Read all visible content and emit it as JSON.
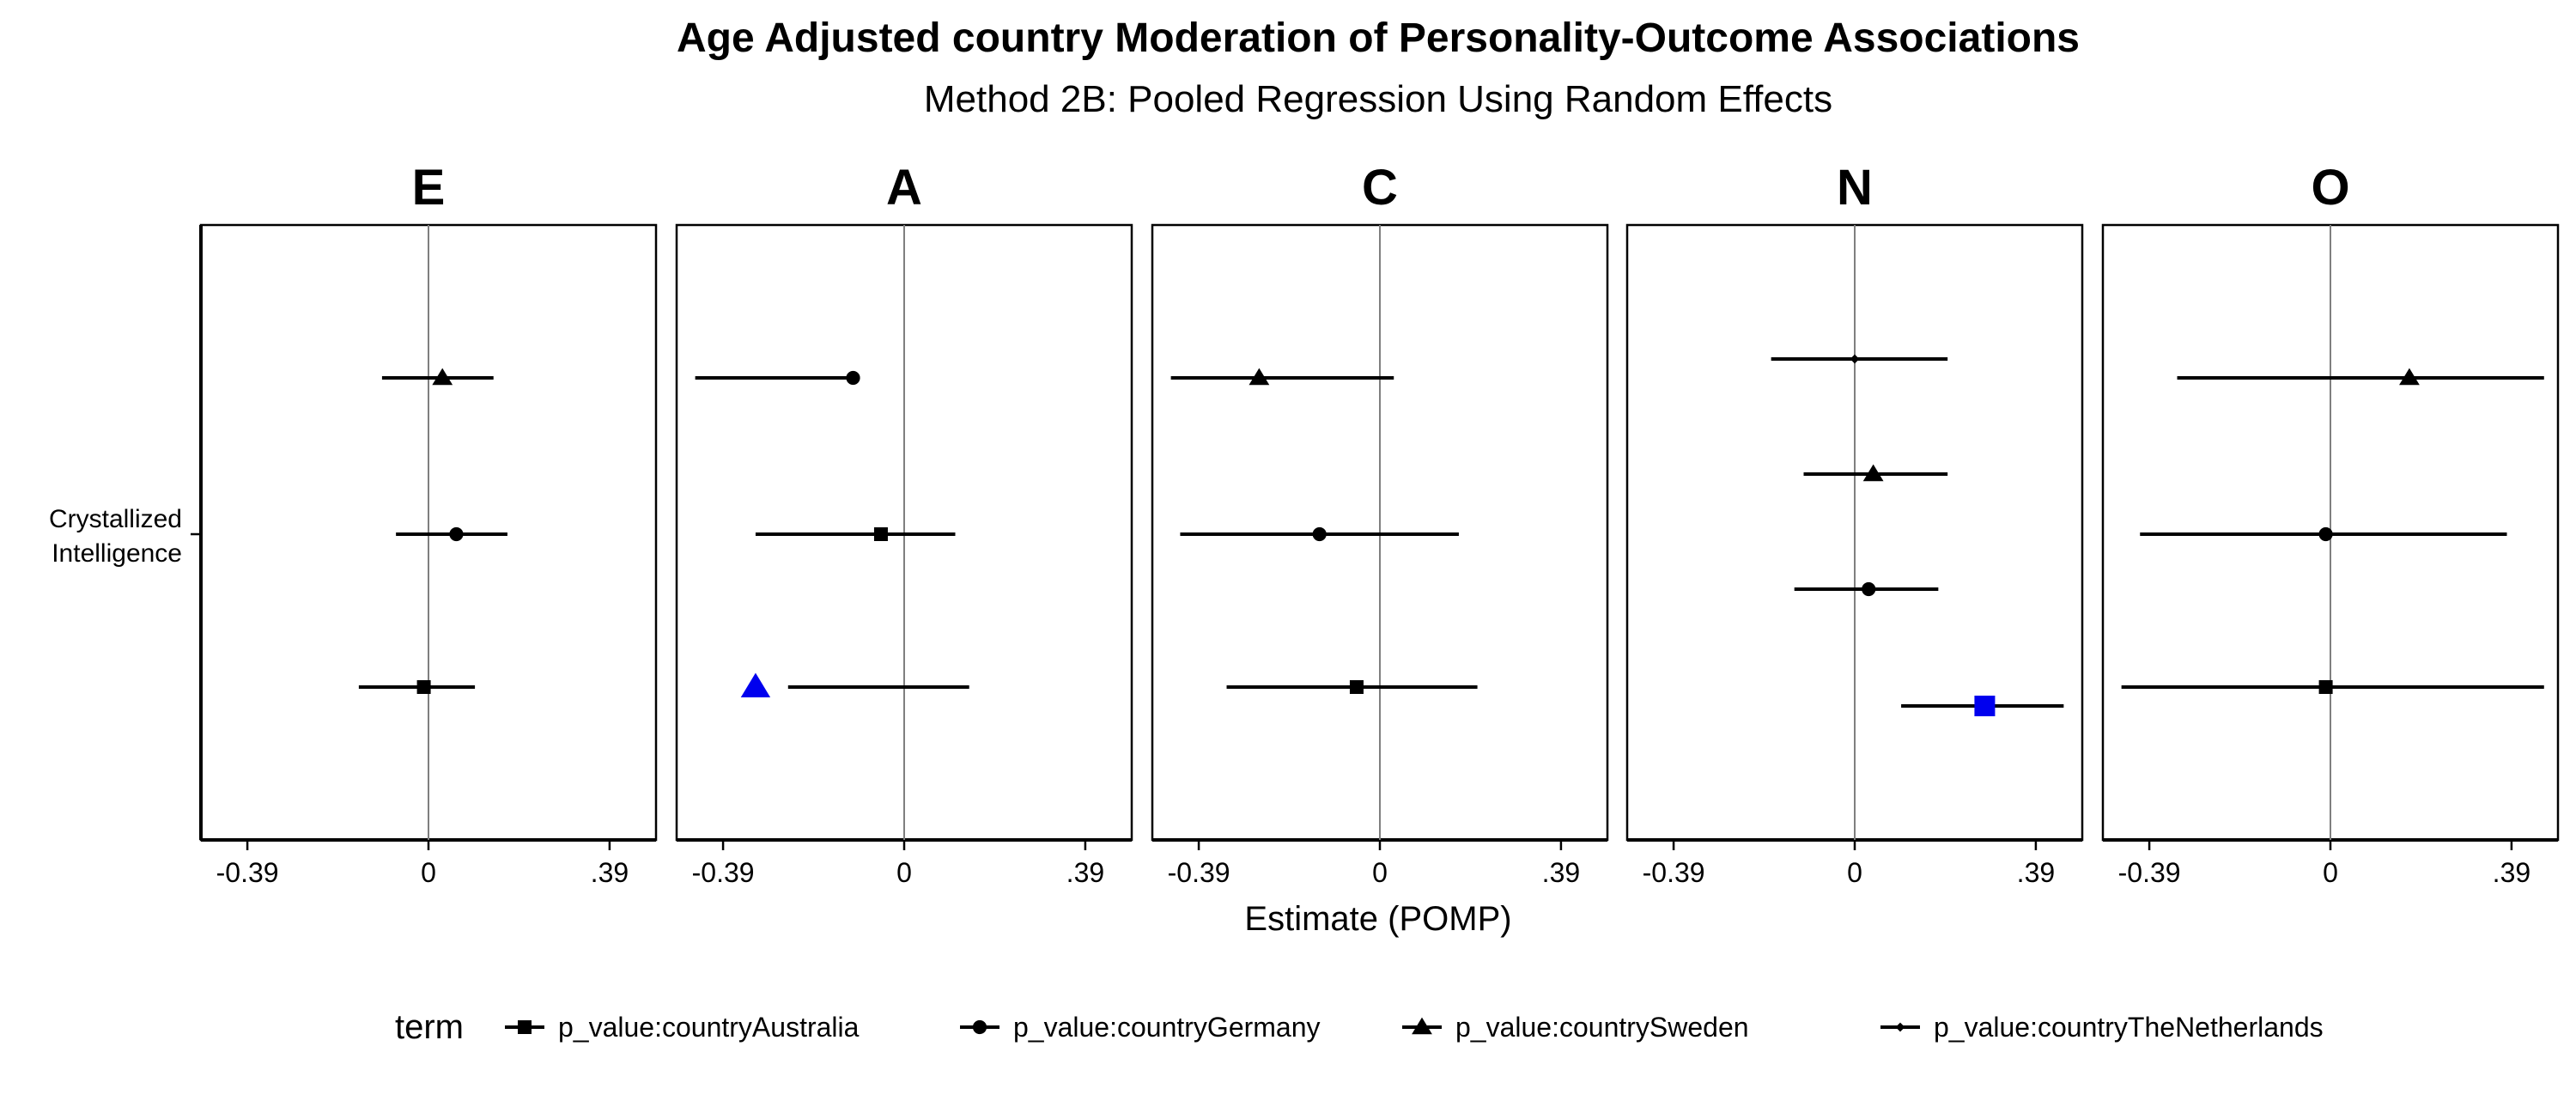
{
  "chart_data": {
    "type": "forest",
    "title": "Age Adjusted country Moderation of Personality-Outcome Associations",
    "subtitle": "Method 2B: Pooled Regression Using Random Effects",
    "xlabel": "Estimate (POMP)",
    "ylabel": "",
    "y_category": "Crystallized\nIntelligence",
    "xlim": [
      -0.49,
      0.49
    ],
    "x_ticks": [
      {
        "value": -0.39,
        "label": "-0.39"
      },
      {
        "value": 0,
        "label": "0"
      },
      {
        "value": 0.39,
        "label": ".39"
      }
    ],
    "grid": false,
    "legend": {
      "position": "bottom",
      "title": "term",
      "entries": [
        {
          "label": "p_value:countryAustralia",
          "shape": "square"
        },
        {
          "label": "p_value:countryGermany",
          "shape": "circle"
        },
        {
          "label": "p_value:countrySweden",
          "shape": "triangle"
        },
        {
          "label": "p_value:countryTheNetherlands",
          "shape": "diamond"
        }
      ]
    },
    "colors": {
      "default": "#000000",
      "highlight": "#0000ee",
      "zero_line": "#7f7f7f"
    },
    "panels": [
      {
        "facet": "E",
        "points": [
          {
            "term": "p_value:countrySweden",
            "shape": "triangle",
            "estimate": 0.03,
            "lower": -0.1,
            "upper": 0.14,
            "highlight": false
          },
          {
            "term": "p_value:countryGermany",
            "shape": "circle",
            "estimate": 0.06,
            "lower": -0.07,
            "upper": 0.17,
            "highlight": false
          },
          {
            "term": "p_value:countryAustralia",
            "shape": "square",
            "estimate": -0.01,
            "lower": -0.15,
            "upper": 0.1,
            "highlight": false
          }
        ]
      },
      {
        "facet": "A",
        "points": [
          {
            "term": "p_value:countryGermany",
            "shape": "circle",
            "estimate": -0.11,
            "lower": -0.45,
            "upper": -0.11,
            "highlight": false
          },
          {
            "term": "p_value:countryAustralia",
            "shape": "square",
            "estimate": -0.05,
            "lower": -0.32,
            "upper": 0.11,
            "highlight": false
          },
          {
            "term": "p_value:countrySweden",
            "shape": "triangle",
            "estimate": -0.32,
            "lower": -0.25,
            "upper": 0.14,
            "highlight": true
          }
        ]
      },
      {
        "facet": "C",
        "points": [
          {
            "term": "p_value:countrySweden",
            "shape": "triangle",
            "estimate": -0.26,
            "lower": -0.45,
            "upper": 0.03,
            "highlight": false
          },
          {
            "term": "p_value:countryGermany",
            "shape": "circle",
            "estimate": -0.13,
            "lower": -0.43,
            "upper": 0.17,
            "highlight": false
          },
          {
            "term": "p_value:countryAustralia",
            "shape": "square",
            "estimate": -0.05,
            "lower": -0.33,
            "upper": 0.21,
            "highlight": false
          }
        ]
      },
      {
        "facet": "N",
        "points": [
          {
            "term": "p_value:countryTheNetherlands",
            "shape": "diamond",
            "estimate": 0.0,
            "lower": -0.18,
            "upper": 0.2,
            "highlight": false
          },
          {
            "term": "p_value:countrySweden",
            "shape": "triangle",
            "estimate": 0.04,
            "lower": -0.11,
            "upper": 0.2,
            "highlight": false
          },
          {
            "term": "p_value:countryGermany",
            "shape": "circle",
            "estimate": 0.03,
            "lower": -0.13,
            "upper": 0.18,
            "highlight": false
          },
          {
            "term": "p_value:countryAustralia",
            "shape": "square",
            "estimate": 0.28,
            "lower": 0.1,
            "upper": 0.45,
            "highlight": true
          }
        ]
      },
      {
        "facet": "O",
        "points": [
          {
            "term": "p_value:countrySweden",
            "shape": "triangle",
            "estimate": 0.17,
            "lower": -0.33,
            "upper": 0.46,
            "highlight": false
          },
          {
            "term": "p_value:countryGermany",
            "shape": "circle",
            "estimate": -0.01,
            "lower": -0.41,
            "upper": 0.38,
            "highlight": false
          },
          {
            "term": "p_value:countryAustralia",
            "shape": "square",
            "estimate": -0.01,
            "lower": -0.45,
            "upper": 0.46,
            "highlight": false
          }
        ]
      }
    ]
  }
}
